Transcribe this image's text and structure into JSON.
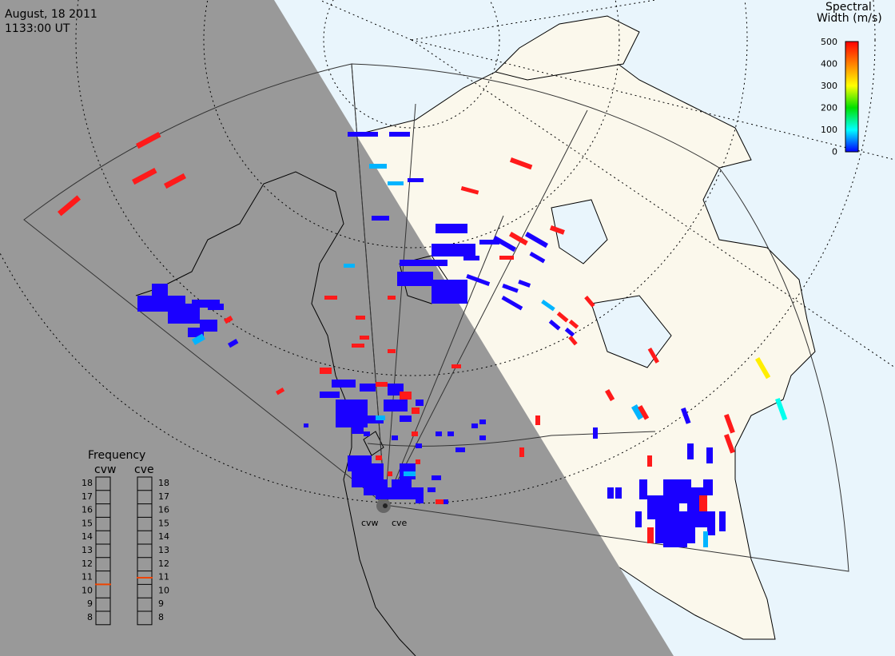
{
  "header": {
    "date": "August, 18 2011",
    "time": "1133:00 UT"
  },
  "colorbar": {
    "title_line1": "Spectral",
    "title_line2": "Width (m/s)",
    "ticks": [
      "500",
      "400",
      "300",
      "200",
      "100",
      "0"
    ],
    "colors": [
      "#ff0000",
      "#ff8000",
      "#ffff00",
      "#00e000",
      "#00ffff",
      "#0000ff"
    ]
  },
  "frequency_panel": {
    "title": "Frequency",
    "radars": [
      "cvw",
      "cve"
    ],
    "levels": [
      "18",
      "17",
      "16",
      "15",
      "14",
      "13",
      "12",
      "11",
      "10",
      "9",
      "8"
    ],
    "cvw_value": 10.5,
    "cve_value": 11
  },
  "radar_sites": {
    "west": "cvw",
    "east": "cve"
  },
  "colors": {
    "night": "#999999",
    "day_land": "#fbf8ec",
    "ocean": "#e9f5fc",
    "low_width": "#1a00ff",
    "mid_width": "#00b4ff",
    "high_width": "#ff1a1a",
    "cyan_width": "#00ffee",
    "yellow_width": "#ffee00",
    "freq_marker": "#ee4400"
  }
}
